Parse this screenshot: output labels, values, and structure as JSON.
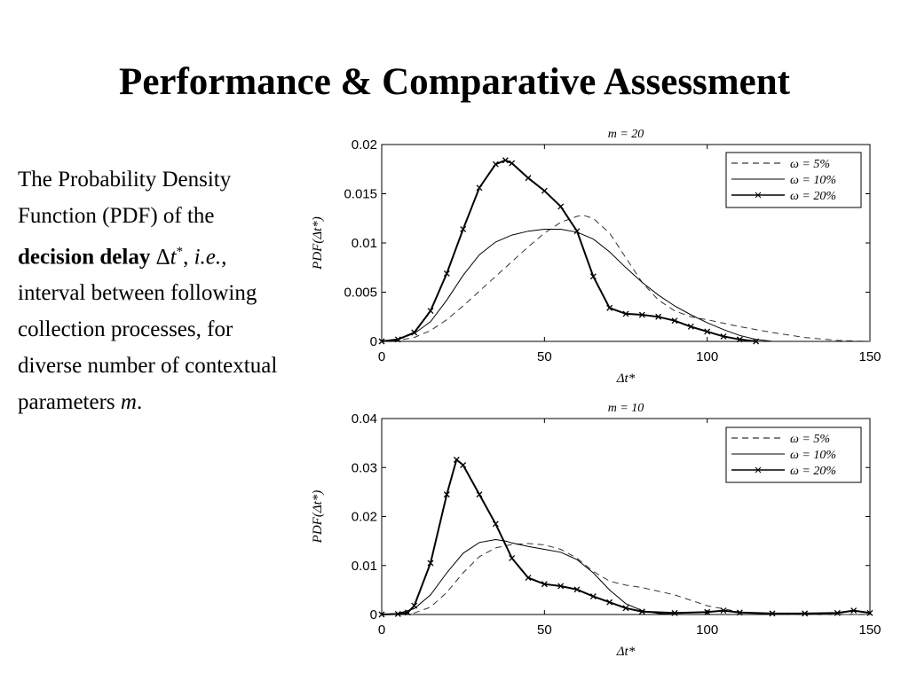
{
  "slide": {
    "title": "Performance & Comparative Assessment",
    "text_1": "The Probability Density Function (PDF) of the",
    "text_bold": "decision delay",
    "text_delta": "Δ",
    "text_t": "t",
    "text_star": "*",
    "text_comma": ",",
    "text_ie": "i.e.,",
    "text_2": "interval between following collection processes, for diverse number of contextual parameters",
    "text_m": "m",
    "text_period": "."
  },
  "chart_data": [
    {
      "type": "line",
      "title": "m = 20",
      "xlabel": "Δt*",
      "ylabel": "PDF(Δt*)",
      "xlim": [
        0,
        150
      ],
      "ylim": [
        0,
        0.02
      ],
      "xticks": [
        0,
        50,
        100,
        150
      ],
      "yticks": [
        0,
        0.005,
        0.01,
        0.015,
        0.02
      ],
      "xtick_labels": [
        "0",
        "50",
        "100",
        "150"
      ],
      "ytick_labels": [
        "0",
        "0.005",
        "0.01",
        "0.015",
        "0.02"
      ],
      "legend_position": "top-right",
      "series": [
        {
          "name": "ω = 5%",
          "style": "dashed",
          "x": [
            0,
            5,
            10,
            15,
            20,
            25,
            30,
            35,
            40,
            45,
            50,
            55,
            60,
            62,
            65,
            70,
            75,
            80,
            85,
            90,
            95,
            100,
            110,
            120,
            130,
            140,
            150
          ],
          "y": [
            0,
            0.0001,
            0.0004,
            0.0011,
            0.0022,
            0.0036,
            0.0051,
            0.0066,
            0.0081,
            0.0096,
            0.011,
            0.0121,
            0.0127,
            0.0128,
            0.0125,
            0.011,
            0.0085,
            0.006,
            0.0042,
            0.0031,
            0.0025,
            0.0022,
            0.0015,
            0.0009,
            0.0004,
            0.0001,
            0
          ]
        },
        {
          "name": "ω = 10%",
          "style": "solid",
          "x": [
            0,
            5,
            10,
            15,
            20,
            25,
            30,
            35,
            40,
            45,
            50,
            55,
            60,
            65,
            70,
            75,
            80,
            85,
            90,
            95,
            100,
            105,
            110,
            115,
            120
          ],
          "y": [
            0,
            0.0002,
            0.0008,
            0.002,
            0.0042,
            0.0067,
            0.0088,
            0.0101,
            0.0108,
            0.0112,
            0.0114,
            0.0114,
            0.0111,
            0.0104,
            0.0091,
            0.0075,
            0.006,
            0.0047,
            0.0036,
            0.0027,
            0.0019,
            0.0012,
            0.0006,
            0.0002,
            0
          ]
        },
        {
          "name": "ω = 20%",
          "style": "solid-x",
          "x": [
            0,
            5,
            10,
            15,
            20,
            25,
            30,
            35,
            38,
            40,
            45,
            50,
            55,
            60,
            65,
            70,
            75,
            80,
            85,
            90,
            95,
            100,
            105,
            110,
            115
          ],
          "y": [
            0,
            0.0002,
            0.0009,
            0.0031,
            0.0069,
            0.0114,
            0.0156,
            0.018,
            0.0184,
            0.0181,
            0.0166,
            0.0153,
            0.0137,
            0.0112,
            0.0066,
            0.0034,
            0.0028,
            0.0027,
            0.0025,
            0.0021,
            0.0015,
            0.001,
            0.0005,
            0.0002,
            0
          ]
        }
      ]
    },
    {
      "type": "line",
      "title": "m = 10",
      "xlabel": "Δt*",
      "ylabel": "PDF(Δt*)",
      "xlim": [
        0,
        150
      ],
      "ylim": [
        0,
        0.04
      ],
      "xticks": [
        0,
        50,
        100,
        150
      ],
      "yticks": [
        0,
        0.01,
        0.02,
        0.03,
        0.04
      ],
      "xtick_labels": [
        "0",
        "50",
        "100",
        "150"
      ],
      "ytick_labels": [
        "0",
        "0.01",
        "0.02",
        "0.03",
        "0.04"
      ],
      "legend_position": "top-right",
      "series": [
        {
          "name": "ω = 5%",
          "style": "dashed",
          "x": [
            0,
            5,
            10,
            15,
            20,
            25,
            30,
            35,
            40,
            45,
            50,
            55,
            60,
            65,
            70,
            75,
            80,
            90,
            100,
            110,
            120,
            130,
            150
          ],
          "y": [
            0,
            0.0001,
            0.0003,
            0.0015,
            0.0045,
            0.0085,
            0.0118,
            0.0136,
            0.0143,
            0.0145,
            0.0142,
            0.0133,
            0.0115,
            0.0088,
            0.0068,
            0.006,
            0.0055,
            0.004,
            0.0018,
            0.0005,
            0.0001,
            0,
            0
          ]
        },
        {
          "name": "ω = 10%",
          "style": "solid",
          "x": [
            0,
            5,
            10,
            15,
            20,
            25,
            30,
            35,
            38,
            40,
            45,
            50,
            55,
            60,
            65,
            70,
            75,
            80,
            85,
            90
          ],
          "y": [
            0,
            0.0002,
            0.0012,
            0.004,
            0.0085,
            0.0125,
            0.0147,
            0.0153,
            0.015,
            0.0146,
            0.0139,
            0.0133,
            0.0127,
            0.0112,
            0.0085,
            0.005,
            0.0022,
            0.0008,
            0.0002,
            0
          ]
        },
        {
          "name": "ω = 20%",
          "style": "solid-x",
          "x": [
            0,
            5,
            8,
            10,
            15,
            20,
            23,
            25,
            30,
            35,
            40,
            45,
            50,
            55,
            60,
            65,
            70,
            75,
            80,
            90,
            100,
            105,
            110,
            120,
            130,
            140,
            145,
            150
          ],
          "y": [
            0,
            0.0001,
            0.0004,
            0.0018,
            0.0105,
            0.0245,
            0.0316,
            0.0305,
            0.0245,
            0.0185,
            0.0115,
            0.0075,
            0.0062,
            0.0058,
            0.0051,
            0.0037,
            0.0025,
            0.0013,
            0.0006,
            0.0003,
            0.0005,
            0.0008,
            0.0004,
            0.0002,
            0.0002,
            0.0003,
            0.0008,
            0.0003
          ]
        }
      ]
    }
  ]
}
